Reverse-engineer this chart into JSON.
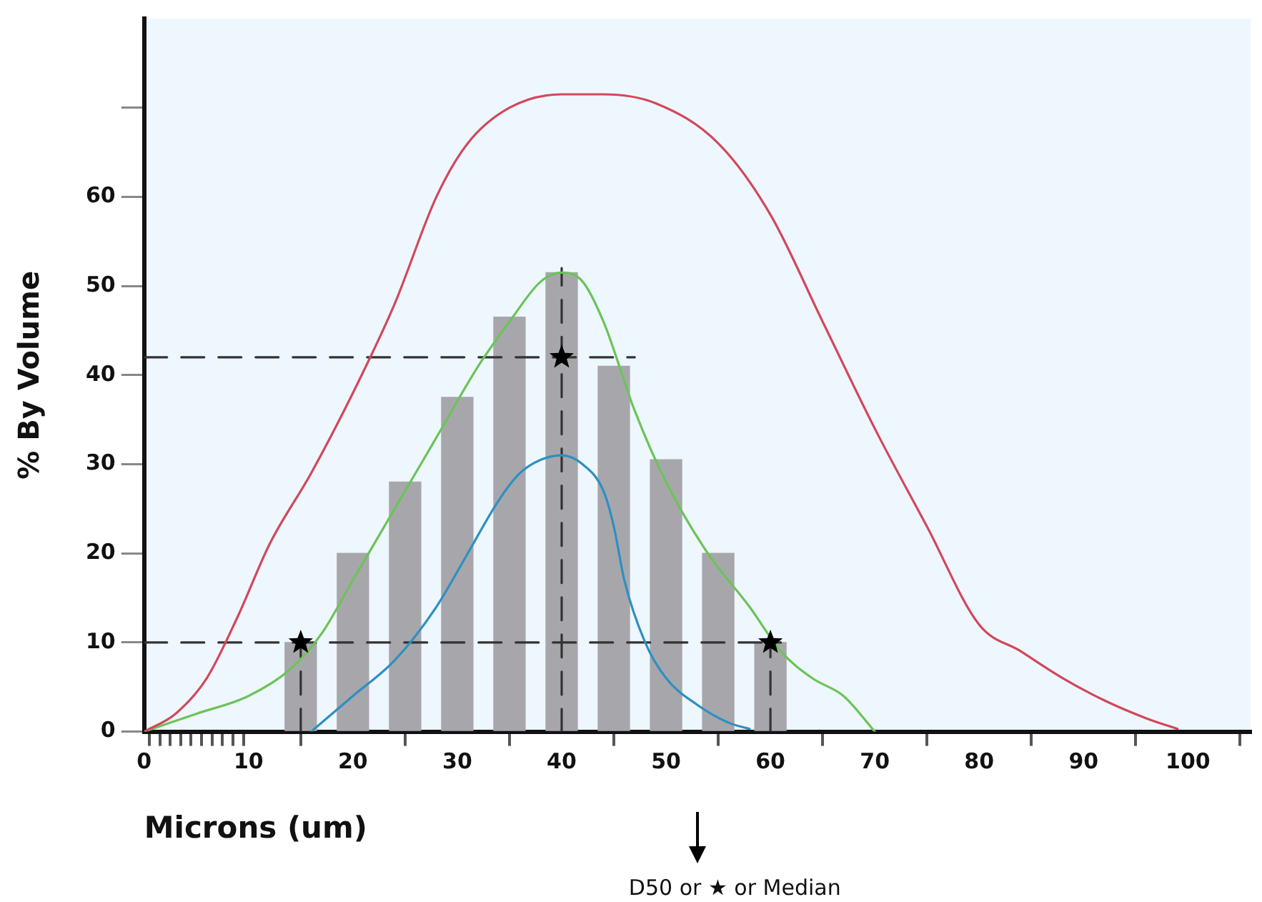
{
  "chart_data": {
    "type": "line",
    "xlabel": "Microns (um)",
    "ylabel": "% By Volume",
    "xlim": [
      0,
      106
    ],
    "ylim": [
      0,
      80
    ],
    "xticks": [
      0,
      {
        "value": 1,
        "label": null
      },
      {
        "value": 2,
        "label": null
      },
      {
        "value": 3,
        "label": null
      },
      {
        "value": 4,
        "label": null
      },
      {
        "value": 5,
        "label": null
      },
      {
        "value": 6,
        "label": null
      },
      {
        "value": 7,
        "label": null
      },
      {
        "value": 8,
        "label": null
      },
      {
        "value": 9,
        "label": null
      },
      10,
      20,
      30,
      40,
      50,
      60,
      70,
      80,
      90,
      100
    ],
    "yticks": [
      0,
      10,
      20,
      30,
      40,
      50,
      60,
      {
        "value": 70,
        "label": null
      }
    ],
    "grid": false,
    "legend": false,
    "series": [
      {
        "type": "bar",
        "color": "#a7a7ab",
        "x": [
          15,
          20,
          25,
          30,
          35,
          40,
          45,
          50,
          55,
          60
        ],
        "values": [
          10,
          20,
          28,
          37.5,
          46.5,
          51.5,
          41,
          30.5,
          20,
          10
        ]
      },
      {
        "color": "#d2485a",
        "x": [
          0,
          3,
          6,
          9,
          12,
          16,
          20,
          24,
          28,
          31,
          35,
          40,
          44,
          49,
          55,
          60,
          65,
          70,
          75,
          80,
          84,
          88,
          92,
          96,
          99
        ],
        "values": [
          0,
          2,
          6,
          13,
          21,
          29,
          38,
          48,
          60,
          66,
          70,
          71.5,
          71.5,
          70.5,
          66,
          58,
          46,
          34,
          23,
          12,
          9,
          6,
          3.5,
          1.5,
          0.3
        ]
      },
      {
        "color": "#6cc35a",
        "x": [
          0,
          5,
          10,
          14,
          17,
          20,
          24,
          28,
          32,
          35,
          38,
          40,
          42,
          44,
          47,
          50,
          54,
          58,
          61,
          64,
          67,
          70
        ],
        "values": [
          0,
          2,
          4,
          7,
          11,
          17,
          25,
          33,
          41,
          46,
          50.5,
          51.5,
          50.5,
          46,
          36,
          28,
          20,
          14,
          9,
          6,
          4,
          0
        ]
      },
      {
        "color": "#2e8fc2",
        "x": [
          16,
          20,
          24,
          28,
          31,
          34,
          36,
          38,
          40,
          42,
          44,
          45,
          46,
          48,
          50,
          53,
          56,
          58
        ],
        "values": [
          0,
          4,
          8,
          14,
          20,
          26,
          29,
          30.5,
          31,
          30,
          27,
          23,
          17,
          10,
          6,
          3,
          1,
          0.3
        ]
      },
      {
        "type": "line",
        "color": "#333333",
        "line_style": "dashed",
        "x": [
          0,
          47
        ],
        "values": [
          42,
          42
        ]
      },
      {
        "type": "line",
        "color": "#333333",
        "line_style": "dashed",
        "x": [
          0,
          61
        ],
        "values": [
          10,
          10
        ]
      },
      {
        "type": "line",
        "color": "#333333",
        "line_style": "dashed",
        "x": [
          15,
          15
        ],
        "values": [
          0,
          10
        ]
      },
      {
        "type": "line",
        "color": "#333333",
        "line_style": "dashed",
        "x": [
          40,
          40
        ],
        "values": [
          0,
          52
        ]
      },
      {
        "type": "line",
        "color": "#333333",
        "line_style": "dashed",
        "x": [
          60,
          60
        ],
        "values": [
          0,
          10
        ]
      },
      {
        "type": "scatter",
        "color": "#000000",
        "marker": "star",
        "x": [
          15,
          40,
          60
        ],
        "values": [
          10,
          42,
          10
        ]
      }
    ],
    "annotations": [
      "D50 or ★ or Median"
    ]
  }
}
